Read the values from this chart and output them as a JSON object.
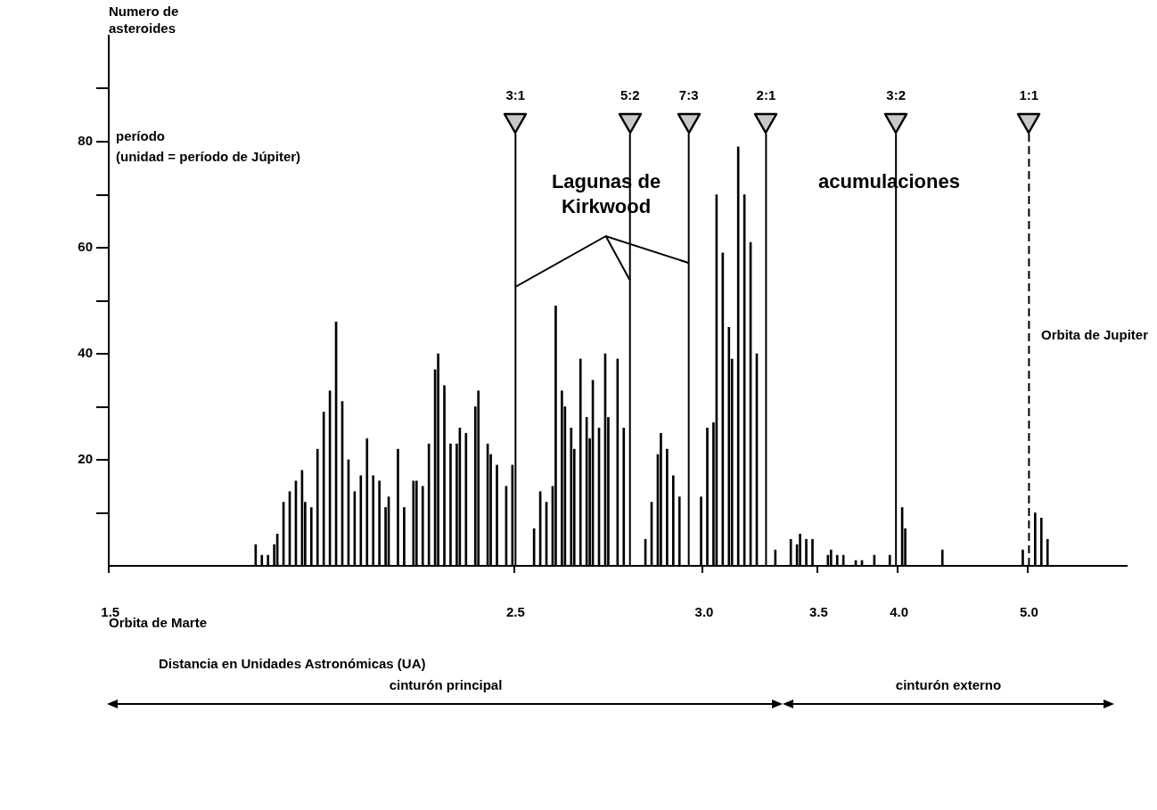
{
  "chart_data": {
    "type": "bar",
    "ylabel": "Numero de asteroides",
    "xlabel": "Distancia en Unidades Astronómicas (UA)",
    "categories": [
      "1.5",
      null,
      null,
      null,
      null,
      null,
      null,
      null,
      null,
      null,
      null,
      null,
      null,
      null,
      null,
      null,
      null,
      null,
      null,
      null,
      null,
      null,
      null,
      null,
      null,
      null,
      null,
      null,
      null,
      null,
      null,
      null,
      null,
      null,
      null,
      null,
      null,
      null,
      null,
      null,
      null,
      null,
      null,
      null,
      null,
      null,
      null,
      null,
      null,
      null,
      null,
      null,
      null,
      null,
      null,
      null,
      null,
      null,
      null,
      null,
      null,
      null,
      null,
      null,
      null,
      null,
      null,
      null,
      null,
      null,
      null,
      null,
      null,
      null,
      null,
      null,
      null,
      null,
      null,
      null,
      null,
      null,
      null,
      null,
      null,
      null,
      null,
      null,
      null,
      null,
      null,
      null,
      null,
      null,
      null,
      null,
      null,
      null,
      null,
      null,
      null,
      null,
      null,
      null,
      null,
      null,
      null,
      null,
      null,
      null,
      null,
      null,
      null,
      null,
      null,
      null,
      null,
      null,
      null,
      null,
      null,
      null,
      null,
      null,
      null,
      null,
      null,
      null,
      null,
      null,
      null,
      "2.5",
      null,
      null,
      null,
      null,
      null,
      null,
      null,
      null,
      null,
      null,
      null,
      null,
      null,
      null,
      null,
      null,
      null,
      null,
      null,
      null,
      null,
      null,
      null,
      null,
      null,
      null,
      null,
      null,
      null,
      null,
      null,
      null,
      null,
      null,
      null,
      null,
      null,
      null,
      null,
      null,
      null,
      null,
      null,
      null,
      null,
      null,
      null,
      null,
      null,
      null,
      null,
      null,
      null,
      null,
      null,
      null,
      null,
      null,
      null,
      null,
      "3.0",
      null,
      null,
      null,
      null,
      null,
      null,
      null,
      null,
      null,
      null,
      null,
      null,
      null,
      null,
      null,
      null,
      null,
      null,
      null,
      null,
      null,
      null,
      null,
      null,
      null,
      null,
      null,
      null,
      null,
      null,
      null,
      null,
      null,
      null,
      null,
      null,
      "3.5",
      null,
      null,
      null,
      null,
      null,
      null,
      null,
      null,
      null,
      null,
      null,
      null,
      null,
      null,
      null,
      null,
      null,
      null,
      null,
      null,
      null,
      null,
      null,
      null,
      null,
      "4.0",
      null,
      null,
      null,
      null,
      null,
      null,
      null,
      null,
      null,
      null,
      null,
      null,
      null,
      null,
      null,
      null,
      null,
      null,
      null,
      null,
      null,
      null,
      null,
      null,
      null,
      null,
      null,
      null,
      null,
      null,
      null,
      null,
      null,
      null,
      null,
      null,
      null,
      null,
      null,
      null,
      null,
      "5.0",
      null,
      null,
      null,
      null,
      null,
      null,
      null,
      null,
      null,
      null,
      null,
      null,
      null,
      null,
      null,
      null,
      null,
      null,
      null,
      null,
      null,
      null,
      null,
      null,
      null,
      null,
      null,
      null,
      null,
      null,
      null
    ],
    "values": [
      null,
      null,
      null,
      null,
      null,
      null,
      null,
      null,
      null,
      null,
      null,
      null,
      null,
      null,
      null,
      null,
      null,
      null,
      null,
      null,
      null,
      null,
      null,
      null,
      null,
      null,
      null,
      null,
      null,
      null,
      null,
      null,
      null,
      null,
      null,
      null,
      null,
      null,
      null,
      null,
      null,
      null,
      null,
      null,
      null,
      null,
      null,
      4,
      null,
      2,
      null,
      2,
      null,
      4,
      6,
      null,
      12,
      null,
      14,
      null,
      16,
      null,
      18,
      12,
      null,
      11,
      null,
      22,
      null,
      29,
      null,
      33,
      null,
      46,
      null,
      31,
      null,
      20,
      null,
      14,
      null,
      17,
      null,
      24,
      null,
      17,
      null,
      16,
      null,
      11,
      13,
      null,
      null,
      22,
      null,
      11,
      null,
      null,
      16,
      16,
      null,
      15,
      null,
      23,
      null,
      37,
      40,
      null,
      34,
      null,
      23,
      null,
      23,
      26,
      null,
      25,
      null,
      null,
      30,
      33,
      null,
      null,
      23,
      21,
      null,
      19,
      null,
      null,
      15,
      null,
      19,
      null,
      null,
      null,
      null,
      null,
      null,
      7,
      null,
      14,
      null,
      12,
      null,
      15,
      49,
      null,
      33,
      30,
      null,
      26,
      22,
      null,
      39,
      null,
      28,
      24,
      35,
      null,
      26,
      null,
      40,
      28,
      null,
      null,
      39,
      null,
      26,
      null,
      null,
      null,
      null,
      null,
      null,
      5,
      null,
      12,
      null,
      21,
      25,
      null,
      22,
      null,
      17,
      null,
      13,
      null,
      null,
      null,
      null,
      null,
      null,
      13,
      null,
      26,
      null,
      27,
      70,
      null,
      59,
      null,
      45,
      39,
      null,
      79,
      null,
      70,
      null,
      61,
      null,
      40,
      null,
      null,
      null,
      null,
      null,
      3,
      null,
      null,
      null,
      null,
      5,
      null,
      4,
      6,
      null,
      5,
      null,
      5,
      null,
      null,
      null,
      null,
      2,
      3,
      null,
      2,
      null,
      2,
      null,
      null,
      null,
      1,
      null,
      1,
      null,
      null,
      null,
      2,
      null,
      null,
      null,
      null,
      2,
      null,
      null,
      null,
      11,
      7,
      null,
      null,
      null,
      null,
      null,
      null,
      null,
      null,
      null,
      null,
      null,
      3,
      null,
      null,
      null,
      null,
      null,
      null,
      null,
      null,
      null,
      null,
      null,
      null,
      null,
      null,
      null,
      null,
      null,
      null,
      null,
      null,
      null,
      null,
      null,
      null,
      null,
      3,
      null,
      null,
      null,
      10,
      null,
      9,
      null,
      5,
      null,
      null,
      null,
      null,
      null,
      null,
      null,
      null,
      null,
      null,
      null,
      null,
      null,
      null,
      null,
      null,
      null,
      null,
      null,
      null,
      null,
      null,
      null,
      null,
      null
    ],
    "color": "#000000",
    "ylim": [
      0,
      100
    ],
    "yticks": [
      {
        "value": 10,
        "label": null
      },
      20,
      {
        "value": 30,
        "label": null
      },
      40,
      {
        "value": 50,
        "label": null
      },
      60,
      {
        "value": 70,
        "label": null
      },
      80,
      {
        "value": 90,
        "label": null
      }
    ],
    "annotations": [
      "período",
      "(unidad = período de Júpiter)",
      "Lagunas de Kirkwood",
      "acumulaciones",
      "Orbita de Jupiter",
      "Orbita de Marte",
      "cinturón principal",
      "cinturón externo",
      "3:1",
      "5:2",
      "7:3",
      "2:1",
      "3:2",
      "1:1"
    ]
  }
}
